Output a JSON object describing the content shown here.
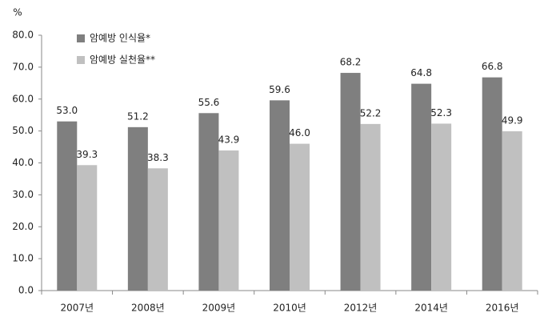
{
  "chart_data": {
    "type": "bar",
    "ylabel": "%",
    "categories": [
      "2007년",
      "2008년",
      "2009년",
      "2010년",
      "2012년",
      "2014년",
      "2016년"
    ],
    "series": [
      {
        "name": "암예방 인식율*",
        "color": "#7f7f7f",
        "values": [
          53.0,
          51.2,
          55.6,
          59.6,
          68.2,
          64.8,
          66.8
        ],
        "value_labels": [
          "53.0",
          "51.2",
          "55.6",
          "59.6",
          "68.2",
          "64.8",
          "66.8"
        ]
      },
      {
        "name": "암예방 실천율**",
        "color": "#c0c0c0",
        "values": [
          39.3,
          38.3,
          43.9,
          46.0,
          52.2,
          52.3,
          49.9
        ],
        "value_labels": [
          "39.3",
          "38.3",
          "43.9",
          "46.0",
          "52.2",
          "52.3",
          "49.9"
        ]
      }
    ],
    "ylim": [
      0,
      80
    ],
    "yticks": [
      {
        "value": 0,
        "label": "0.0"
      },
      {
        "value": 10,
        "label": "10.0"
      },
      {
        "value": 20,
        "label": "20.0"
      },
      {
        "value": 30,
        "label": "30.0"
      },
      {
        "value": 40,
        "label": "40.0"
      },
      {
        "value": 50,
        "label": "50.0"
      },
      {
        "value": 60,
        "label": "60.0"
      },
      {
        "value": 70,
        "label": "70.0"
      },
      {
        "value": 80,
        "label": "80.0"
      }
    ],
    "grid": false,
    "legend": "upper left"
  }
}
